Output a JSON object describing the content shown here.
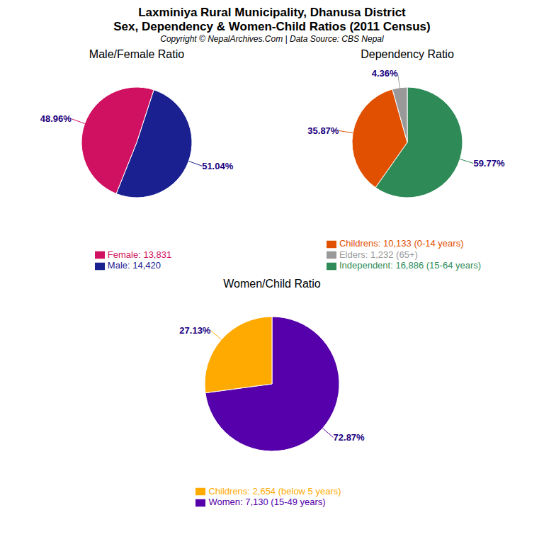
{
  "title": "Laxminiya Rural Municipality, Dhanusa District",
  "subtitle": "Sex, Dependency & Women-Child Ratios (2011 Census)",
  "annotations": [
    "Copyright © NepalArchives.Com | Data Source: CBS Nepal"
  ],
  "chart_data": [
    {
      "type": "pie",
      "title": "Male/Female Ratio",
      "categories": [
        "Male: 14,420",
        "Female: 13,831"
      ],
      "values": [
        51.04,
        48.96
      ],
      "value_labels": [
        "51.04%",
        "48.96%"
      ],
      "colors": [
        "#1a2090",
        "#d01060"
      ],
      "data_labels": true,
      "legend": "bottom"
    },
    {
      "type": "pie",
      "title": "Dependency Ratio",
      "categories": [
        "Independent: 16,886 (15-64 years)",
        "Childrens: 10,133 (0-14 years)",
        "Elders: 1,232 (65+)"
      ],
      "values": [
        59.77,
        35.87,
        4.36
      ],
      "value_labels": [
        "59.77%",
        "35.87%",
        "4.36%"
      ],
      "colors": [
        "#2e8b57",
        "#e05000",
        "#999999"
      ],
      "data_labels": true,
      "legend": "bottom"
    },
    {
      "type": "pie",
      "title": "Women/Child Ratio",
      "categories": [
        "Women: 7,130 (15-49 years)",
        "Childrens: 2,654 (below 5 years)"
      ],
      "values": [
        72.87,
        27.13
      ],
      "value_labels": [
        "72.87%",
        "27.13%"
      ],
      "colors": [
        "#5500aa",
        "#ffaa00"
      ],
      "data_labels": true,
      "legend": "bottom"
    }
  ]
}
